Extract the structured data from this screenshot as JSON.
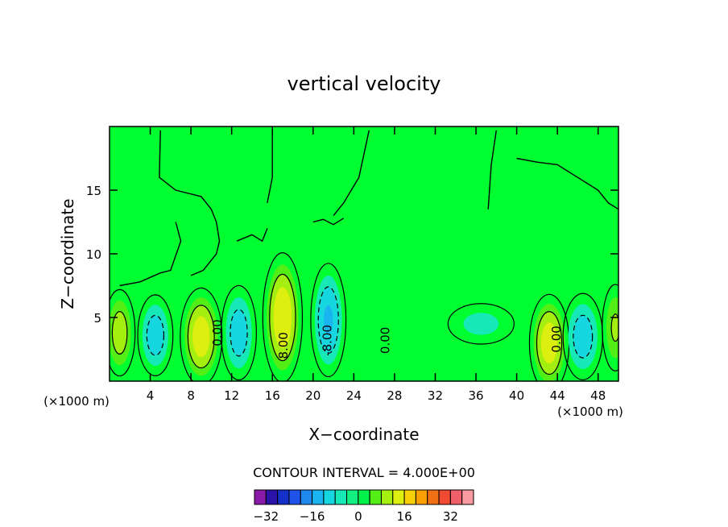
{
  "chart_data": {
    "type": "heatmap",
    "title": "vertical velocity",
    "xlabel": "X−coordinate",
    "ylabel": "Z−coordinate",
    "x_unit_left": "(×1000 m)",
    "x_unit_right": "(×1000 m)",
    "xlim": [
      0,
      50
    ],
    "ylim": [
      0,
      20
    ],
    "x_ticks": [
      4,
      8,
      12,
      16,
      20,
      24,
      28,
      32,
      36,
      40,
      44,
      48
    ],
    "x_tick_labels": [
      "4",
      "8",
      "12",
      "16",
      "20",
      "24",
      "28",
      "32",
      "36",
      "40",
      "44",
      "48"
    ],
    "y_ticks": [
      5,
      10,
      15
    ],
    "y_tick_labels": [
      "5",
      "10",
      "15"
    ],
    "background_color": "#00ff30",
    "contour_interval_text": "CONTOUR INTERVAL = 4.000E+00",
    "contour_labels": [
      {
        "text": "0.00",
        "x": 11,
        "y": 3.8
      },
      {
        "text": "8.00",
        "x": 17.5,
        "y": 2.8
      },
      {
        "text": "-8.00",
        "x": 21.8,
        "y": 3.2
      },
      {
        "text": "0.00",
        "x": 27.5,
        "y": 3.2
      },
      {
        "text": "0.00",
        "x": 44.3,
        "y": 3.3
      }
    ],
    "cells": [
      {
        "x": 1,
        "z": 3.8,
        "rx": 1.4,
        "rz": 3.2,
        "w": 10
      },
      {
        "x": 4.5,
        "z": 3.6,
        "rx": 1.6,
        "rz": 3.0,
        "w": -10
      },
      {
        "x": 9,
        "z": 3.5,
        "rx": 1.9,
        "rz": 3.6,
        "w": 14
      },
      {
        "x": 12.7,
        "z": 3.8,
        "rx": 1.6,
        "rz": 3.5,
        "w": -10
      },
      {
        "x": 17,
        "z": 5.0,
        "rx": 1.8,
        "rz": 4.8,
        "w": 15
      },
      {
        "x": 21.5,
        "z": 4.8,
        "rx": 1.6,
        "rz": 4.2,
        "w": -12
      },
      {
        "x": 36.5,
        "z": 4.5,
        "rx": 3.0,
        "rz": 1.5,
        "w": -5
      },
      {
        "x": 43.2,
        "z": 3.0,
        "rx": 1.8,
        "rz": 3.6,
        "w": 14
      },
      {
        "x": 46.5,
        "z": 3.5,
        "rx": 1.8,
        "rz": 3.2,
        "w": -10
      },
      {
        "x": 49.7,
        "z": 4.2,
        "rx": 1.2,
        "rz": 3.2,
        "w": 8
      }
    ],
    "zero_contour_paths": [
      "1,7.5 3,7.8 5,8.5 6,8.7 7,11 6.5,12.5",
      "5,19.7 4.9,16 6.5,15 9,14.5 10,13.5 10.5,12.5 10.8,11 10.5,10 9.2,8.7 8,8.3",
      "12.5,11 14,11.5 15,11 15.5,12",
      "16,19.7 16,16 15.5,14",
      "25.5,19.7 24.5,16 23,14 22,13",
      "20,12.5 21,12.7 22,12.3 23,12.8",
      "38,19.7 37.5,17 37.2,13.5",
      "40,17.5 42,17.2 44,17 46,16 48,15 49,14 50,13.5"
    ],
    "legend": {
      "min": -32,
      "max": 32,
      "step": 4,
      "labels": [
        "-32",
        "-16",
        "0",
        "16",
        "32"
      ],
      "label_values": [
        -32,
        -16,
        0,
        16,
        32
      ],
      "colors": [
        "#8a1aa8",
        "#2b13a8",
        "#1530c8",
        "#1e52e8",
        "#1e88ee",
        "#1ab4f0",
        "#16d6e0",
        "#16e8b8",
        "#12ee80",
        "#00f24a",
        "#52ee16",
        "#a4ee10",
        "#dcef0e",
        "#f8d008",
        "#f8a000",
        "#f07014",
        "#f04a32",
        "#f0606a",
        "#f89aa0"
      ]
    }
  }
}
